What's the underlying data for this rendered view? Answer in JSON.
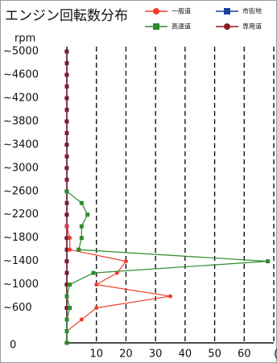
{
  "chart_data": {
    "type": "line",
    "orientation": "horizontal",
    "title": "エンジン回転数分布",
    "ylabel": "rpm",
    "y": [
      0,
      200,
      400,
      600,
      800,
      1000,
      1200,
      1400,
      1600,
      1800,
      2000,
      2200,
      2400,
      2600,
      2800,
      3000,
      3200,
      3400,
      3600,
      3800,
      4000,
      4200,
      4400,
      4600,
      4800,
      5000
    ],
    "series": [
      {
        "name": "一般道",
        "color": "#f03c2c",
        "marker": "circle",
        "values": [
          0,
          0,
          5,
          10,
          35,
          10,
          17,
          20,
          1,
          1,
          0,
          null,
          null,
          null,
          null,
          null,
          null,
          null,
          null,
          null,
          null,
          null,
          null,
          null,
          null,
          null
        ]
      },
      {
        "name": "市街地",
        "color": "#1f3f9f",
        "marker": "square",
        "values": [
          0,
          0,
          0,
          0,
          0,
          0,
          0,
          0,
          0,
          0,
          0,
          0,
          0,
          0,
          0,
          0,
          0,
          0,
          0,
          0,
          0,
          0,
          0,
          0,
          0,
          0
        ]
      },
      {
        "name": "高速道",
        "color": "#2e8b2e",
        "marker": "square",
        "values": [
          0,
          0,
          0,
          1,
          0,
          1,
          9,
          68,
          4,
          5,
          5,
          7,
          5,
          0,
          null,
          null,
          null,
          null,
          null,
          null,
          null,
          null,
          null,
          null,
          null,
          null
        ]
      },
      {
        "name": "専用道",
        "color": "#8b1a1a",
        "marker": "circle",
        "values": [
          0,
          0,
          0,
          0,
          0,
          0,
          0,
          0,
          0,
          0,
          0,
          0,
          0,
          0,
          0,
          0,
          0,
          0,
          0,
          0,
          0,
          0,
          0,
          0,
          0,
          0
        ]
      }
    ],
    "xlim": [
      0,
      70
    ],
    "xticks": [
      10,
      20,
      30,
      40,
      50,
      60,
      {
        "value": 70,
        "label": "(%"
      }
    ],
    "ylim": [
      0,
      5000
    ],
    "yticks": [
      0,
      {
        "value": 600,
        "label": "~600"
      },
      {
        "value": 1000,
        "label": "~1000"
      },
      {
        "value": 1400,
        "label": "~1400"
      },
      {
        "value": 1800,
        "label": "~1800"
      },
      {
        "value": 2200,
        "label": "~2200"
      },
      {
        "value": 2600,
        "label": "~2600"
      },
      {
        "value": 3000,
        "label": "~3000"
      },
      {
        "value": 3400,
        "label": "~3400"
      },
      {
        "value": 3800,
        "label": "~3800"
      },
      {
        "value": 4200,
        "label": "~4200"
      },
      {
        "value": 4600,
        "label": "~4600"
      },
      {
        "value": 5000,
        "label": "~5000"
      }
    ],
    "grid": true,
    "legend": "top-right"
  }
}
